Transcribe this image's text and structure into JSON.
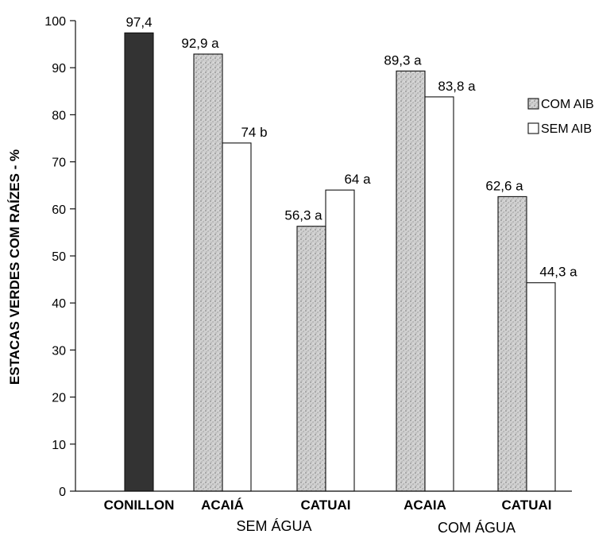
{
  "chart_data": {
    "type": "bar",
    "title": "",
    "ylabel": "ESTACAS VERDES COM RAÍZES - %",
    "ylim": [
      0,
      100
    ],
    "yticks": [
      "0",
      "10",
      "20",
      "30",
      "40",
      "50",
      "60",
      "70",
      "80",
      "90",
      "100"
    ],
    "grid": false,
    "legend_position": "right",
    "colors": {
      "conillon": "#333333",
      "com_aib": "#c8c8c8",
      "sem_aib": "#ffffff",
      "outline": "#111111"
    },
    "legend": [
      {
        "key": "com_aib",
        "label": "COM AIB",
        "pattern": "stipple"
      },
      {
        "key": "sem_aib",
        "label": "SEM AIB",
        "pattern": "white"
      }
    ],
    "groups": [
      "SEM ÁGUA",
      "COM ÁGUA"
    ],
    "categories": [
      {
        "label": "CONILLON",
        "group": null,
        "bars": [
          {
            "series": "conillon",
            "value": 97.4,
            "label": "97,4"
          }
        ]
      },
      {
        "label": "ACAIÁ",
        "group": 0,
        "bars": [
          {
            "series": "com_aib",
            "value": 92.9,
            "label": "92,9 a"
          },
          {
            "series": "sem_aib",
            "value": 74,
            "label": "74 b"
          }
        ]
      },
      {
        "label": "CATUAI",
        "group": 0,
        "bars": [
          {
            "series": "com_aib",
            "value": 56.3,
            "label": "56,3 a"
          },
          {
            "series": "sem_aib",
            "value": 64,
            "label": "64 a"
          }
        ]
      },
      {
        "label": "ACAIA",
        "group": 1,
        "bars": [
          {
            "series": "com_aib",
            "value": 89.3,
            "label": "89,3 a"
          },
          {
            "series": "sem_aib",
            "value": 83.8,
            "label": "83,8 a"
          }
        ]
      },
      {
        "label": "CATUAI",
        "group": 1,
        "bars": [
          {
            "series": "com_aib",
            "value": 62.6,
            "label": "62,6 a"
          },
          {
            "series": "sem_aib",
            "value": 44.3,
            "label": "44,3 a"
          }
        ]
      }
    ]
  }
}
